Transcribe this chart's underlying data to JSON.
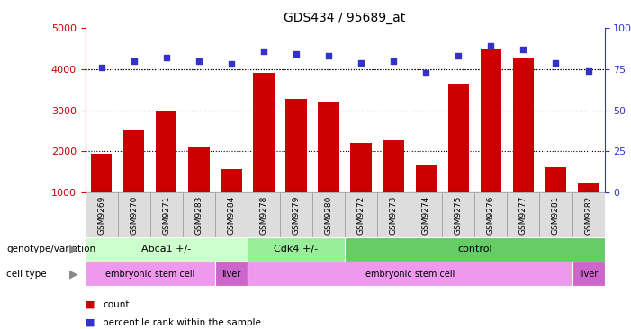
{
  "title": "GDS434 / 95689_at",
  "samples": [
    "GSM9269",
    "GSM9270",
    "GSM9271",
    "GSM9283",
    "GSM9284",
    "GSM9278",
    "GSM9279",
    "GSM9280",
    "GSM9272",
    "GSM9273",
    "GSM9274",
    "GSM9275",
    "GSM9276",
    "GSM9277",
    "GSM9281",
    "GSM9282"
  ],
  "counts": [
    1950,
    2500,
    2980,
    2100,
    1560,
    3900,
    3270,
    3200,
    2200,
    2260,
    1650,
    3640,
    4500,
    4280,
    1620,
    1230
  ],
  "percentiles": [
    76,
    80,
    82,
    80,
    78,
    86,
    84,
    83,
    79,
    80,
    73,
    83,
    89,
    87,
    79,
    74
  ],
  "bar_color": "#cc0000",
  "dot_color": "#3333cc",
  "ylim_left": [
    1000,
    5000
  ],
  "ylim_right": [
    0,
    100
  ],
  "yticks_left": [
    1000,
    2000,
    3000,
    4000,
    5000
  ],
  "yticks_right": [
    0,
    25,
    50,
    75,
    100
  ],
  "grid_values": [
    2000,
    3000,
    4000
  ],
  "genotype_groups": [
    {
      "label": "Abca1 +/-",
      "start": 0,
      "end": 5,
      "color": "#ccffcc"
    },
    {
      "label": "Cdk4 +/-",
      "start": 5,
      "end": 8,
      "color": "#99ee99"
    },
    {
      "label": "control",
      "start": 8,
      "end": 16,
      "color": "#66cc66"
    }
  ],
  "celltype_groups": [
    {
      "label": "embryonic stem cell",
      "start": 0,
      "end": 4,
      "color": "#ee99ee"
    },
    {
      "label": "liver",
      "start": 4,
      "end": 5,
      "color": "#cc66cc"
    },
    {
      "label": "embryonic stem cell",
      "start": 5,
      "end": 15,
      "color": "#ee99ee"
    },
    {
      "label": "liver",
      "start": 15,
      "end": 16,
      "color": "#cc66cc"
    }
  ],
  "legend_count_color": "#cc0000",
  "legend_dot_color": "#3333cc",
  "bg_color": "#ffffff",
  "tick_label_color_left": "#cc0000",
  "tick_label_color_right": "#3333cc",
  "plot_bg": "#ffffff",
  "xtick_bg": "#dddddd"
}
